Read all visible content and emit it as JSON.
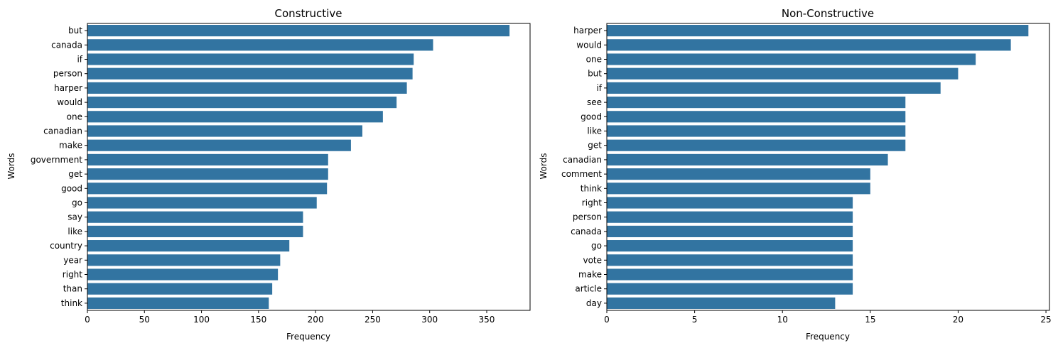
{
  "chart_data": [
    {
      "type": "bar",
      "orientation": "horizontal",
      "title": "Constructive",
      "xlabel": "Frequency",
      "ylabel": "Words",
      "xlim": [
        0,
        388
      ],
      "xticks": [
        0,
        50,
        100,
        150,
        200,
        250,
        300,
        350
      ],
      "color": "#3274a1",
      "categories": [
        "but",
        "canada",
        "if",
        "person",
        "harper",
        "would",
        "one",
        "canadian",
        "make",
        "government",
        "get",
        "good",
        "go",
        "say",
        "like",
        "country",
        "year",
        "right",
        "than",
        "think"
      ],
      "values": [
        370,
        303,
        286,
        285,
        280,
        271,
        259,
        241,
        231,
        211,
        211,
        210,
        201,
        189,
        189,
        177,
        169,
        167,
        162,
        159
      ]
    },
    {
      "type": "bar",
      "orientation": "horizontal",
      "title": "Non-Constructive",
      "xlabel": "Frequency",
      "ylabel": "Words",
      "xlim": [
        0,
        25.2
      ],
      "xticks": [
        0,
        5,
        10,
        15,
        20,
        25
      ],
      "color": "#3274a1",
      "categories": [
        "harper",
        "would",
        "one",
        "but",
        "if",
        "see",
        "good",
        "like",
        "get",
        "canadian",
        "comment",
        "think",
        "right",
        "person",
        "canada",
        "go",
        "vote",
        "make",
        "article",
        "day"
      ],
      "values": [
        24,
        23,
        21,
        20,
        19,
        17,
        17,
        17,
        17,
        16,
        15,
        15,
        14,
        14,
        14,
        14,
        14,
        14,
        14,
        13
      ]
    }
  ]
}
